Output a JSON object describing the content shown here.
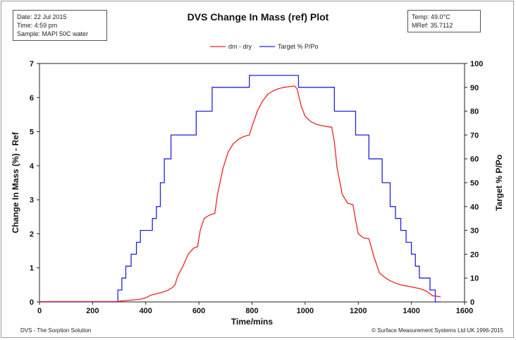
{
  "info_left": {
    "date": "Date: 22 Jul 2015",
    "time": "Time: 4:59 pm",
    "sample": "Sample:  MAPI 50C water"
  },
  "info_right": {
    "temp": "Temp: 49.0°C",
    "mref": "MRef:  35.7112"
  },
  "footer": {
    "left": "DVS - The Sorption Solution",
    "right": "© Surface Measurement Systems Ltd UK 1996-2015"
  },
  "colors": {
    "mass": "#ee2222",
    "target": "#2222dd"
  },
  "chart_data": {
    "type": "line",
    "title": "DVS Change In Mass (ref) Plot",
    "xlabel": "Time/mins",
    "ylabel": "Change In Mass (%) - Ref",
    "y2label": "Target % P/Po",
    "xlim": [
      0,
      1600
    ],
    "ylim": [
      0,
      7
    ],
    "y2lim": [
      0,
      100
    ],
    "x_ticks": [
      0,
      200,
      400,
      600,
      800,
      1000,
      1200,
      1400,
      1600
    ],
    "y_ticks": [
      0,
      1,
      2,
      3,
      4,
      5,
      6,
      7
    ],
    "y2_ticks": [
      0,
      10,
      20,
      30,
      40,
      50,
      60,
      70,
      80,
      90,
      100
    ],
    "legend_position": "top-center",
    "grid": false,
    "series": [
      {
        "name": "dm - dry",
        "axis": "left",
        "color": "#ee2222",
        "x": [
          0,
          295,
          300,
          340,
          380,
          400,
          420,
          460,
          480,
          500,
          510,
          520,
          540,
          560,
          580,
          595,
          605,
          620,
          640,
          660,
          670,
          690,
          710,
          730,
          750,
          770,
          790,
          800,
          820,
          840,
          860,
          880,
          900,
          920,
          940,
          960,
          970,
          985,
          1000,
          1020,
          1040,
          1060,
          1080,
          1100,
          1110,
          1120,
          1140,
          1160,
          1180,
          1190,
          1200,
          1220,
          1240,
          1260,
          1280,
          1300,
          1320,
          1340,
          1360,
          1380,
          1400,
          1420,
          1440,
          1460,
          1480,
          1500,
          1510
        ],
        "y": [
          0.01,
          0.01,
          0.02,
          0.05,
          0.08,
          0.12,
          0.2,
          0.28,
          0.33,
          0.42,
          0.5,
          0.75,
          1.05,
          1.4,
          1.58,
          1.62,
          2.1,
          2.45,
          2.55,
          2.6,
          3.15,
          3.9,
          4.4,
          4.65,
          4.78,
          4.86,
          4.9,
          5.15,
          5.6,
          5.9,
          6.1,
          6.2,
          6.26,
          6.3,
          6.32,
          6.34,
          6.25,
          5.75,
          5.45,
          5.3,
          5.22,
          5.18,
          5.15,
          5.13,
          4.7,
          3.95,
          3.15,
          2.9,
          2.85,
          2.4,
          2.0,
          1.88,
          1.85,
          1.3,
          0.85,
          0.72,
          0.62,
          0.55,
          0.5,
          0.47,
          0.44,
          0.41,
          0.37,
          0.3,
          0.18,
          0.16,
          0.15
        ]
      },
      {
        "name": "Target % P/Po",
        "axis": "right",
        "color": "#2222dd",
        "steps": [
          [
            0,
            0
          ],
          [
            295,
            5
          ],
          [
            310,
            10
          ],
          [
            325,
            15
          ],
          [
            345,
            20
          ],
          [
            365,
            25
          ],
          [
            380,
            30
          ],
          [
            425,
            35
          ],
          [
            440,
            40
          ],
          [
            455,
            50
          ],
          [
            470,
            60
          ],
          [
            495,
            70
          ],
          [
            590,
            80
          ],
          [
            650,
            90
          ],
          [
            790,
            95
          ],
          [
            975,
            90
          ],
          [
            1110,
            80
          ],
          [
            1190,
            70
          ],
          [
            1240,
            60
          ],
          [
            1290,
            50
          ],
          [
            1320,
            40
          ],
          [
            1340,
            35
          ],
          [
            1360,
            30
          ],
          [
            1380,
            25
          ],
          [
            1400,
            20
          ],
          [
            1415,
            15
          ],
          [
            1430,
            10
          ],
          [
            1470,
            5
          ],
          [
            1490,
            0
          ],
          [
            1510,
            0
          ]
        ]
      }
    ]
  }
}
